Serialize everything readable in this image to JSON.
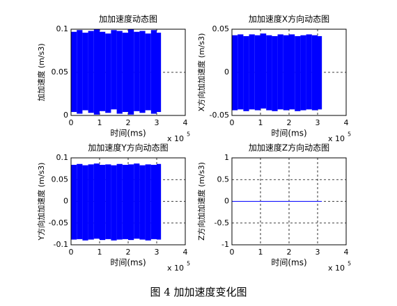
{
  "chart_data": [
    {
      "type": "band",
      "title": "加加速度动态图",
      "x_label": "时间(ms)",
      "y_label": "加加速度 (m/s3)",
      "x_multiplier": "x 10",
      "x_multiplier_exp": "5",
      "color": "#0000ff",
      "grid": true,
      "bins": [
        0,
        20000,
        40000,
        60000,
        80000,
        100000,
        120000,
        140000,
        160000,
        180000,
        200000,
        220000,
        240000,
        260000,
        280000,
        300000,
        315000
      ],
      "upper": [
        0.097,
        0.099,
        0.096,
        0.098,
        0.1,
        0.097,
        0.095,
        0.099,
        0.098,
        0.096,
        0.1,
        0.097,
        0.098,
        0.095,
        0.099,
        0.096
      ],
      "lower": [
        0.004,
        0.002,
        0.006,
        0.003,
        0.001,
        0.005,
        0.003,
        0.007,
        0.002,
        0.004,
        0.001,
        0.005,
        0.003,
        0.006,
        0.002,
        0.004
      ],
      "xlim": [
        0,
        400000
      ],
      "xticks": [
        0,
        {
          "value": 100000,
          "label": "1"
        },
        {
          "value": 200000,
          "label": "2"
        },
        {
          "value": 300000,
          "label": "3"
        },
        {
          "value": 400000,
          "label": "4"
        }
      ],
      "ylim": [
        0,
        0.1
      ],
      "yticks": [
        0,
        0.05,
        0.1
      ]
    },
    {
      "type": "band",
      "title": "加加速度X方向动态图",
      "x_label": "时间(ms)",
      "y_label": "X方向加加速度 (m/s3)",
      "x_multiplier": "x 10",
      "x_multiplier_exp": "5",
      "color": "#0000ff",
      "grid": true,
      "bins": [
        0,
        20000,
        40000,
        60000,
        80000,
        100000,
        120000,
        140000,
        160000,
        180000,
        200000,
        220000,
        240000,
        260000,
        280000,
        300000,
        315000
      ],
      "upper": [
        0.043,
        0.044,
        0.042,
        0.044,
        0.043,
        0.045,
        0.043,
        0.042,
        0.044,
        0.043,
        0.044,
        0.042,
        0.043,
        0.044,
        0.043,
        0.042
      ],
      "lower": [
        -0.044,
        -0.043,
        -0.045,
        -0.043,
        -0.044,
        -0.042,
        -0.044,
        -0.045,
        -0.043,
        -0.044,
        -0.043,
        -0.045,
        -0.044,
        -0.043,
        -0.044,
        -0.043
      ],
      "xlim": [
        0,
        400000
      ],
      "xticks": [
        0,
        {
          "value": 100000,
          "label": "1"
        },
        {
          "value": 200000,
          "label": "2"
        },
        {
          "value": 300000,
          "label": "3"
        },
        {
          "value": 400000,
          "label": "4"
        }
      ],
      "ylim": [
        -0.05,
        0.05
      ],
      "yticks": [
        -0.05,
        0,
        0.05
      ]
    },
    {
      "type": "band",
      "title": "加加速度Y方向动态图",
      "x_label": "时间(ms)",
      "y_label": "Y方向加加速度 (m/s3)",
      "x_multiplier": "x 10",
      "x_multiplier_exp": "5",
      "color": "#0000ff",
      "grid": true,
      "bins": [
        0,
        20000,
        40000,
        60000,
        80000,
        100000,
        120000,
        140000,
        160000,
        180000,
        200000,
        220000,
        240000,
        260000,
        280000,
        300000,
        315000
      ],
      "upper": [
        0.084,
        0.086,
        0.083,
        0.085,
        0.087,
        0.084,
        0.085,
        0.083,
        0.086,
        0.084,
        0.085,
        0.087,
        0.083,
        0.085,
        0.084,
        0.086
      ],
      "lower": [
        -0.088,
        -0.087,
        -0.09,
        -0.088,
        -0.086,
        -0.089,
        -0.087,
        -0.09,
        -0.088,
        -0.087,
        -0.089,
        -0.086,
        -0.088,
        -0.09,
        -0.087,
        -0.088
      ],
      "xlim": [
        0,
        400000
      ],
      "xticks": [
        0,
        {
          "value": 100000,
          "label": "1"
        },
        {
          "value": 200000,
          "label": "2"
        },
        {
          "value": 300000,
          "label": "3"
        },
        {
          "value": 400000,
          "label": "4"
        }
      ],
      "ylim": [
        -0.1,
        0.1
      ],
      "yticks": [
        -0.1,
        -0.05,
        0,
        0.05,
        0.1
      ]
    },
    {
      "type": "line",
      "title": "加加速度Z方向动态图",
      "x_label": "时间(ms)",
      "y_label": "Z方向加加速度 (m/s3)",
      "x_multiplier": "x 10",
      "x_multiplier_exp": "5",
      "color": "#0000ff",
      "grid": true,
      "x": [
        0,
        315000
      ],
      "values": [
        0,
        0
      ],
      "xlim": [
        0,
        400000
      ],
      "xticks": [
        0,
        {
          "value": 100000,
          "label": "1"
        },
        {
          "value": 200000,
          "label": "2"
        },
        {
          "value": 300000,
          "label": "3"
        },
        {
          "value": 400000,
          "label": "4"
        }
      ],
      "ylim": [
        -1,
        1
      ],
      "yticks": [
        -1,
        -0.5,
        0,
        0.5,
        1
      ]
    }
  ],
  "caption": "图 4  加加速度变化图"
}
